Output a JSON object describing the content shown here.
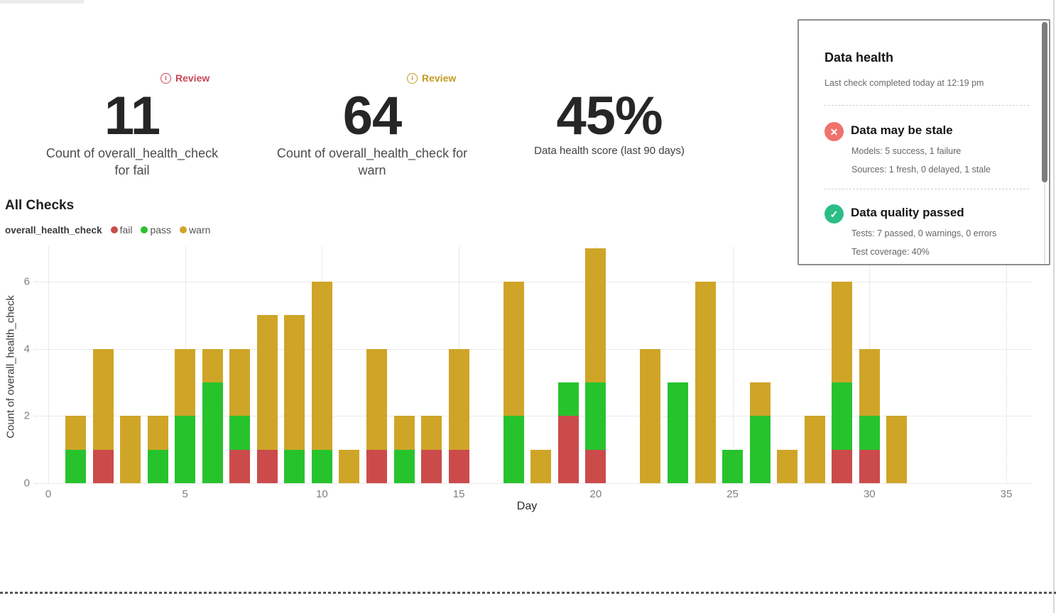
{
  "kpis": [
    {
      "badge": {
        "label": "Review",
        "icon": "info-circle-icon",
        "color": "#cb4557",
        "info_glyph": "i"
      },
      "value": "11",
      "label_lines": [
        "Count of overall_health_check",
        "for fail"
      ]
    },
    {
      "badge": {
        "label": "Review",
        "icon": "info-circle-icon",
        "color": "#c59b22",
        "info_glyph": "i"
      },
      "value": "64",
      "label_lines": [
        "Count of overall_health_check for",
        "warn"
      ]
    },
    {
      "value": "45%",
      "label_lines": [
        "Data health score (last 90 days)"
      ]
    }
  ],
  "health_panel": {
    "title": "Data health",
    "subtitle": "Last check completed today at 12:19 pm",
    "items": [
      {
        "icon": "x-circle-icon",
        "icon_glyph": "✕",
        "icon_color": "#f0726c",
        "title": "Data may be stale",
        "details": [
          "Models: 5 success, 1 failure",
          "Sources: 1 fresh, 0 delayed, 1 stale"
        ]
      },
      {
        "icon": "check-circle-icon",
        "icon_glyph": "✓",
        "icon_color": "#2cbd87",
        "title": "Data quality passed",
        "details": [
          "Tests: 7 passed, 0 warnings, 0 errors",
          "Test coverage: 40%"
        ]
      }
    ]
  },
  "chart": {
    "title": "All Checks",
    "legend_title": "overall_health_check",
    "legend": [
      {
        "label": "fail",
        "color": "#cb4b4b"
      },
      {
        "label": "pass",
        "color": "#27c32d"
      },
      {
        "label": "warn",
        "color": "#cfa528"
      }
    ],
    "chart_data": {
      "type": "bar",
      "stacked": true,
      "title": "All Checks",
      "xlabel": "Day",
      "ylabel": "Count of overall_health_check",
      "xlim": [
        0,
        35
      ],
      "ylim": [
        0,
        7
      ],
      "x_ticks": [
        0,
        5,
        10,
        15,
        20,
        25,
        30,
        35
      ],
      "y_ticks": [
        0,
        2,
        4,
        6
      ],
      "grid": true,
      "legend_position": "top-left",
      "x": [
        1,
        2,
        3,
        4,
        5,
        6,
        7,
        8,
        9,
        10,
        11,
        12,
        13,
        14,
        15,
        16,
        17,
        18,
        19,
        20,
        21,
        22,
        23,
        24,
        25,
        26,
        27,
        28,
        29,
        30,
        31
      ],
      "series": [
        {
          "name": "fail",
          "values": [
            0,
            1,
            0,
            0,
            0,
            0,
            1,
            1,
            0,
            0,
            0,
            1,
            0,
            1,
            1,
            0,
            0,
            0,
            2,
            1,
            0,
            0,
            0,
            0,
            0,
            0,
            0,
            0,
            1,
            1,
            0
          ]
        },
        {
          "name": "pass",
          "values": [
            1,
            0,
            0,
            1,
            2,
            3,
            1,
            0,
            1,
            1,
            0,
            0,
            1,
            0,
            0,
            0,
            2,
            0,
            1,
            2,
            0,
            0,
            3,
            0,
            1,
            2,
            0,
            0,
            2,
            1,
            0
          ]
        },
        {
          "name": "warn",
          "values": [
            1,
            3,
            2,
            1,
            2,
            1,
            2,
            4,
            4,
            5,
            1,
            3,
            1,
            1,
            3,
            0,
            4,
            1,
            0,
            4,
            0,
            4,
            0,
            6,
            0,
            1,
            1,
            2,
            3,
            2,
            2
          ]
        }
      ],
      "colors": {
        "fail": "#cb4b4b",
        "pass": "#27c32d",
        "warn": "#cfa528"
      },
      "totals": {
        "fail": 11,
        "pass": 25,
        "warn": 64
      }
    }
  }
}
